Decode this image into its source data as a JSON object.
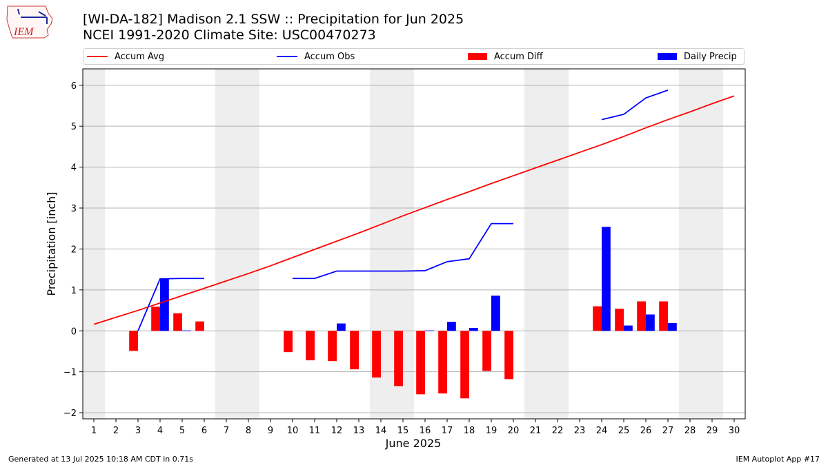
{
  "logo": {
    "text": "IEM",
    "icon": "iowa-state-outline-logo"
  },
  "title_line1": "[WI-DA-182] Madison 2.1 SSW :: Precipitation for Jun 2025",
  "title_line2": "NCEI 1991-2020 Climate Site: USC00470273",
  "footer_left": "Generated at 13 Jul 2025 10:18 AM CDT in 0.71s",
  "footer_right": "IEM Autoplot App #17",
  "colors": {
    "accum_avg": "#ff0000",
    "accum_obs": "#0000ff",
    "accum_diff": "#ff0000",
    "daily_precip": "#0000ff",
    "weekend_band": "#eeeeee",
    "grid": "#b0b0b0"
  },
  "chart_data": {
    "type": "bar",
    "xlabel": "June 2025",
    "ylabel": "Precipitation [inch]",
    "xlim": [
      0.5,
      30.5
    ],
    "ylim": [
      -2.15,
      6.4
    ],
    "yticks": [
      -2,
      -1,
      0,
      1,
      2,
      3,
      4,
      5,
      6
    ],
    "ytick_labels": [
      "−2",
      "−1",
      "0",
      "1",
      "2",
      "3",
      "4",
      "5",
      "6"
    ],
    "x_tick_labels": [
      "1",
      "2",
      "3",
      "4",
      "5",
      "6",
      "7",
      "8",
      "9",
      "10",
      "11",
      "12",
      "13",
      "14",
      "15",
      "16",
      "17",
      "18",
      "19",
      "20",
      "21",
      "22",
      "23",
      "24",
      "25",
      "26",
      "27",
      "28",
      "29",
      "30"
    ],
    "grid": "horizontal",
    "legend_placement": "top",
    "weekend_bands": [
      [
        0.5,
        1.5
      ],
      [
        6.5,
        8.5
      ],
      [
        13.5,
        15.5
      ],
      [
        20.5,
        22.5
      ],
      [
        27.5,
        29.5
      ]
    ],
    "legend": [
      {
        "label": "Accum Avg",
        "kind": "line",
        "color": "#ff0000"
      },
      {
        "label": "Accum Obs",
        "kind": "line",
        "color": "#0000ff"
      },
      {
        "label": "Accum Diff",
        "kind": "bar",
        "color": "#ff0000"
      },
      {
        "label": "Daily Precip",
        "kind": "bar",
        "color": "#0000ff"
      }
    ],
    "series": [
      {
        "name": "Accum Avg",
        "type": "line",
        "color": "#ff0000",
        "x": [
          1,
          2,
          3,
          4,
          5,
          6,
          7,
          8,
          9,
          10,
          11,
          12,
          13,
          14,
          15,
          16,
          17,
          18,
          19,
          20,
          21,
          22,
          23,
          24,
          25,
          26,
          27,
          28,
          29,
          30
        ],
        "y": [
          0.16,
          0.33,
          0.5,
          0.68,
          0.86,
          1.04,
          1.22,
          1.4,
          1.59,
          1.79,
          1.99,
          2.19,
          2.39,
          2.6,
          2.81,
          3.01,
          3.21,
          3.4,
          3.6,
          3.79,
          3.98,
          4.17,
          4.36,
          4.55,
          4.75,
          4.96,
          5.16,
          5.35,
          5.55,
          5.74
        ]
      },
      {
        "name": "Accum Obs",
        "type": "line",
        "color": "#0000ff",
        "segments": [
          {
            "x": [
              3,
              4,
              5,
              6
            ],
            "y": [
              0.0,
              1.27,
              1.28,
              1.28
            ]
          },
          {
            "x": [
              10,
              11,
              12,
              13,
              14,
              15,
              16,
              17,
              18,
              19,
              20
            ],
            "y": [
              1.28,
              1.28,
              1.46,
              1.46,
              1.46,
              1.46,
              1.47,
              1.69,
              1.76,
              2.62,
              2.62
            ]
          },
          {
            "x": [
              24,
              25,
              26,
              27
            ],
            "y": [
              5.16,
              5.29,
              5.69,
              5.88
            ]
          }
        ]
      },
      {
        "name": "Accum Diff",
        "type": "bar",
        "color": "#ff0000",
        "x": [
          3,
          4,
          5,
          6,
          10,
          11,
          12,
          13,
          14,
          15,
          16,
          17,
          18,
          19,
          20,
          24,
          25,
          26,
          27
        ],
        "y": [
          -0.49,
          0.59,
          0.43,
          0.23,
          -0.52,
          -0.72,
          -0.74,
          -0.94,
          -1.14,
          -1.35,
          -1.55,
          -1.53,
          -1.65,
          -0.98,
          -1.18,
          0.6,
          0.54,
          0.72,
          0.72
        ]
      },
      {
        "name": "Daily Precip",
        "type": "bar",
        "color": "#0000ff",
        "x": [
          4,
          5,
          12,
          16,
          17,
          18,
          19,
          24,
          25,
          26,
          27
        ],
        "y": [
          1.27,
          0.01,
          0.18,
          0.01,
          0.22,
          0.07,
          0.86,
          2.54,
          0.13,
          0.4,
          0.19
        ]
      }
    ]
  }
}
